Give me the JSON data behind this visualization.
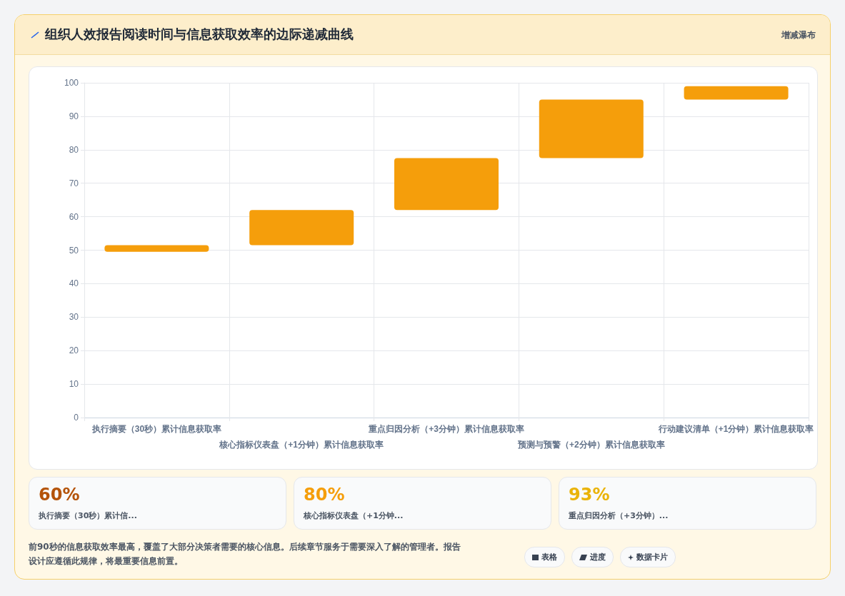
{
  "chart_data": [
    {
      "type": "bar",
      "title": "组织人效报告阅读时间与信息获取效率的边际递减曲线",
      "categories": [
        "执行摘要（30秒）累计信息获取率",
        "核心指标仪表盘（+1分钟）累计信息获取率",
        "重点归因分析（+3分钟）累计信息获取率",
        "预测与预警（+2分钟）累计信息获取率",
        "行动建议清单（+1分钟）累计信息获取率"
      ],
      "values": [
        2,
        10.5,
        15.5,
        17.5,
        4
      ],
      "base": [
        49.5,
        51.5,
        62,
        77.5,
        95
      ],
      "color": "#f59e0b",
      "ylim": [
        0,
        100
      ],
      "yticks": [
        0,
        10,
        20,
        30,
        40,
        50,
        60,
        70,
        80,
        90,
        100
      ],
      "grid": true,
      "annotations": [
        "增减瀑布",
        "前90秒的信息获取效率最高，覆盖了大部分决策者需要的核心信息。后续章节服务于需要深入了解的管理者。报告设计应遵循此规律，将最重要信息前置。",
        "表格",
        "进度",
        "数据卡片"
      ]
    },
    {
      "type": "other",
      "title": "60%",
      "subtitle": "执行摘要（30秒）累计信...",
      "color": "#b45309"
    },
    {
      "type": "other",
      "title": "80%",
      "subtitle": "核心指标仪表盘（+1分钟...",
      "color": "#f59e0b"
    },
    {
      "type": "other",
      "title": "93%",
      "subtitle": "重点归因分析（+3分钟）...",
      "color": "#eab308"
    }
  ]
}
